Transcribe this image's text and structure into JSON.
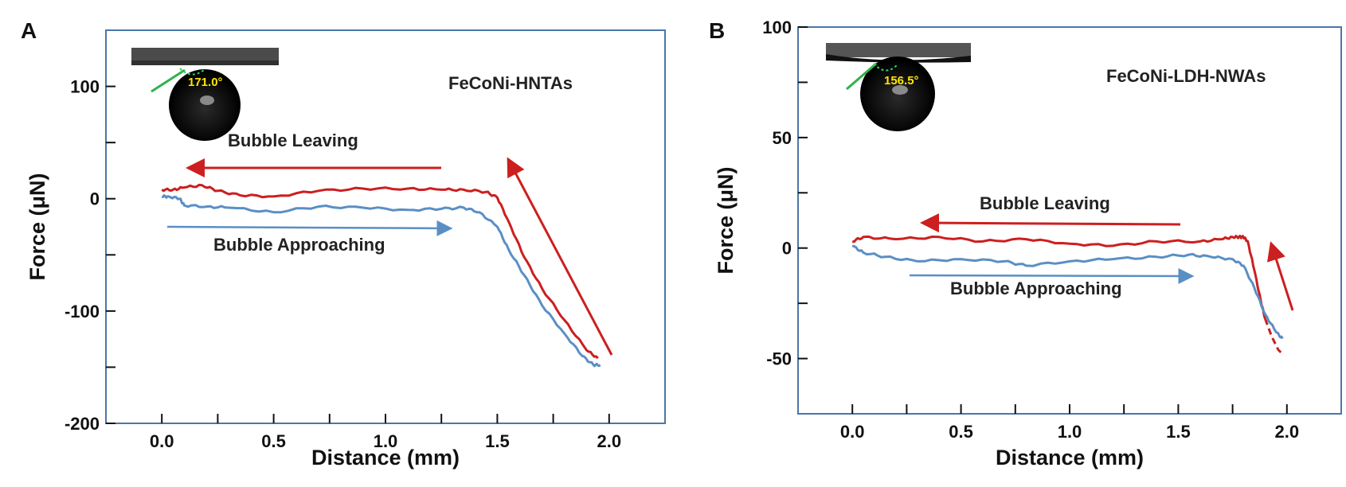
{
  "chart_data": [
    {
      "panel": "A",
      "type": "line",
      "xlabel": "Distance (mm)",
      "ylabel": "Force (μN)",
      "xlim": [
        -0.25,
        2.25
      ],
      "ylim": [
        -200,
        150
      ],
      "xticks": [
        "0.0",
        "0.5",
        "1.0",
        "1.5",
        "2.0"
      ],
      "xtick_values": [
        0,
        0.5,
        1.0,
        1.5,
        2.0
      ],
      "yticks": [
        "100",
        "0",
        "-100",
        "-200"
      ],
      "ytick_values": [
        100,
        0,
        -100,
        -200
      ],
      "ytick_minor": [
        50,
        -50,
        -150
      ],
      "sample_label": "FeCoNi-HNTAs",
      "contact_angle": "171.0°",
      "annotations": {
        "leaving": "Bubble Leaving",
        "approaching": "Bubble Approaching"
      },
      "series": [
        {
          "role": "leaving",
          "color": "#cc1f1f",
          "x": [
            0.0,
            0.05,
            0.1,
            0.18,
            0.25,
            0.35,
            0.5,
            0.7,
            0.9,
            1.1,
            1.25,
            1.35,
            1.45,
            1.5,
            1.55,
            1.62,
            1.7,
            1.8,
            1.9,
            1.95
          ],
          "y": [
            8,
            8,
            10,
            12,
            7,
            3,
            2,
            7,
            9,
            9,
            8,
            8,
            6,
            1,
            -20,
            -52,
            -80,
            -108,
            -135,
            -142
          ]
        },
        {
          "role": "approaching",
          "color": "#5a8fc4",
          "x": [
            0.0,
            0.03,
            0.08,
            0.1,
            0.2,
            0.3,
            0.5,
            0.7,
            0.9,
            1.1,
            1.25,
            1.35,
            1.42,
            1.5,
            1.55,
            1.62,
            1.7,
            1.8,
            1.88,
            1.93,
            1.96
          ],
          "y": [
            2,
            2,
            0,
            -6,
            -7,
            -8,
            -12,
            -7,
            -8,
            -10,
            -9,
            -8,
            -12,
            -25,
            -45,
            -68,
            -95,
            -120,
            -140,
            -148,
            -148
          ]
        }
      ]
    },
    {
      "panel": "B",
      "type": "line",
      "xlabel": "Distance (mm)",
      "ylabel": "Force (μN)",
      "xlim": [
        -0.25,
        2.25
      ],
      "ylim": [
        -75,
        100
      ],
      "xticks": [
        "0.0",
        "0.5",
        "1.0",
        "1.5",
        "2.0"
      ],
      "xtick_values": [
        0,
        0.5,
        1.0,
        1.5,
        2.0
      ],
      "yticks": [
        "100",
        "50",
        "0",
        "-50"
      ],
      "ytick_values": [
        100,
        50,
        0,
        -50
      ],
      "ytick_minor": [
        75,
        25,
        -25
      ],
      "sample_label": "FeCoNi-LDH-NWAs",
      "contact_angle": "156.5°",
      "annotations": {
        "leaving": "Bubble Leaving",
        "approaching": "Bubble Approaching"
      },
      "series": [
        {
          "role": "leaving",
          "color": "#cc1f1f",
          "x": [
            0.0,
            0.05,
            0.2,
            0.4,
            0.6,
            0.8,
            1.0,
            1.2,
            1.4,
            1.6,
            1.7,
            1.75,
            1.78,
            1.8,
            1.82,
            1.85,
            1.88,
            1.9
          ],
          "y": [
            3,
            5,
            4,
            5,
            3,
            4,
            2,
            1,
            3,
            3,
            4,
            5,
            5,
            5,
            3,
            -10,
            -24,
            -32
          ]
        },
        {
          "role": "leaving-extrapolated",
          "color": "#cc1f1f",
          "dashed": true,
          "x": [
            1.9,
            1.93,
            1.96,
            1.98
          ],
          "y": [
            -32,
            -40,
            -46,
            -48
          ]
        },
        {
          "role": "approaching",
          "color": "#5a8fc4",
          "x": [
            0.0,
            0.05,
            0.15,
            0.3,
            0.5,
            0.7,
            0.8,
            1.0,
            1.2,
            1.4,
            1.55,
            1.65,
            1.75,
            1.8,
            1.85,
            1.9,
            1.95,
            1.98
          ],
          "y": [
            1,
            -2,
            -4,
            -6,
            -5,
            -6,
            -8,
            -6,
            -5,
            -4,
            -3,
            -4,
            -5,
            -8,
            -18,
            -30,
            -38,
            -41
          ]
        }
      ]
    }
  ]
}
